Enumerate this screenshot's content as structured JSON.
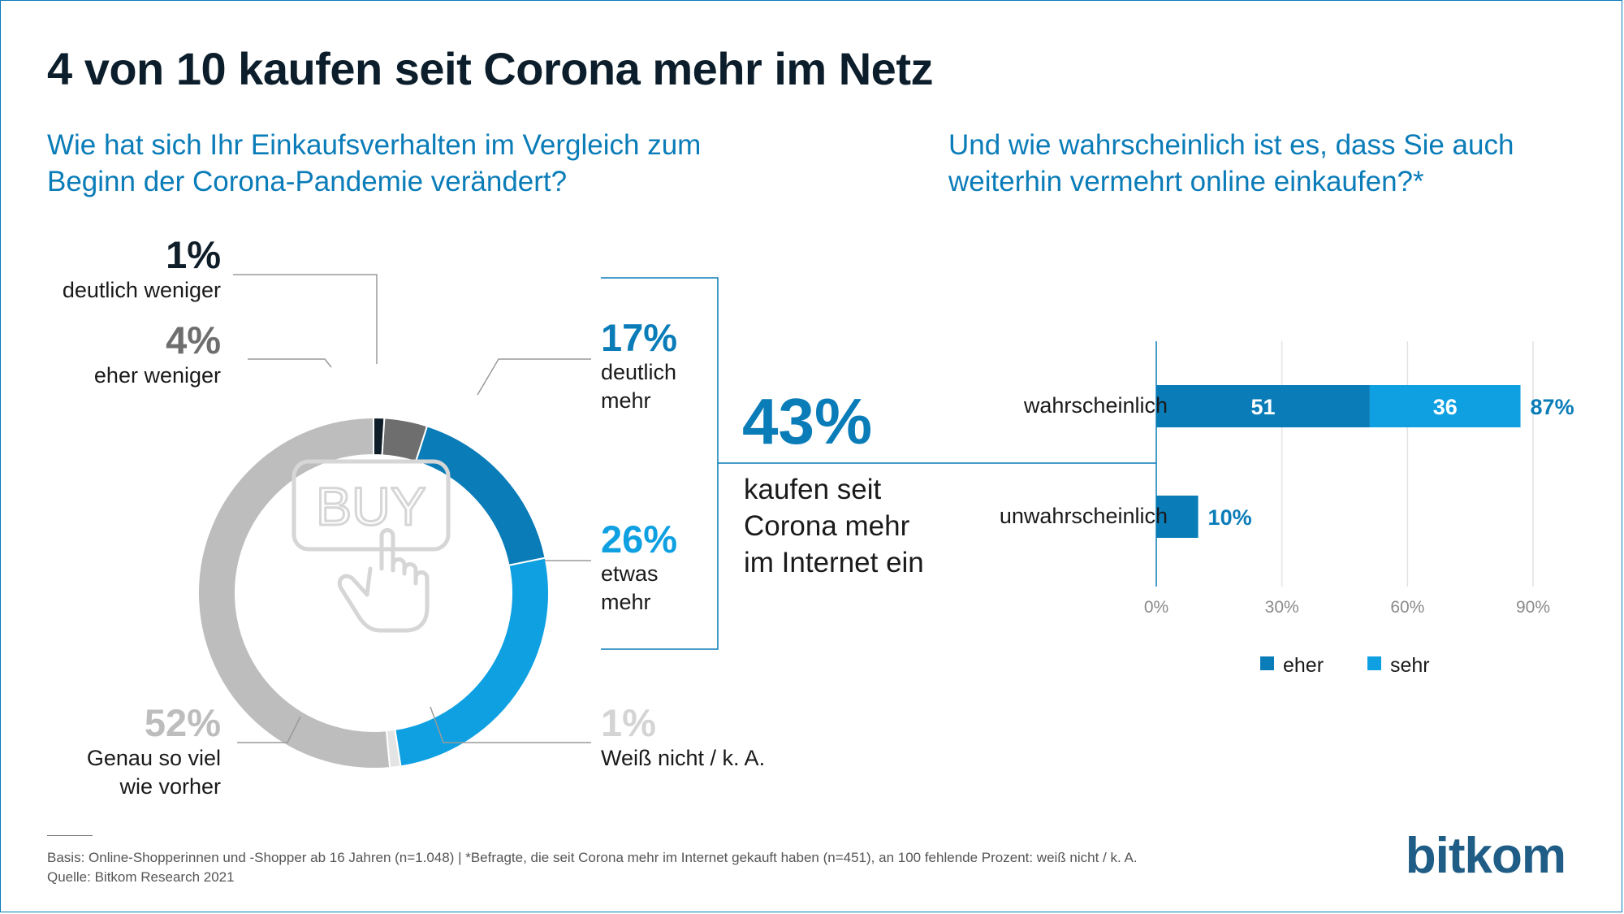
{
  "title": "4 von 10 kaufen seit Corona mehr im Netz",
  "question_left": "Wie hat sich Ihr Einkaufsverhalten im Vergleich zum Beginn der Corona-Pandemie verändert?",
  "question_right": "Und wie wahrscheinlich ist es, dass Sie auch weiterhin vermehrt online einkaufen?*",
  "icon_text": "BUY",
  "highlight": {
    "value": "43%",
    "line1": "kaufen seit",
    "line2": "Corona mehr",
    "line3": "im Internet ein"
  },
  "colors": {
    "dark": "#0f1d28",
    "darkgray": "#6e6e6e",
    "blue": "#0a7cb8",
    "lightblue": "#0fa0e2",
    "lightgray": "#e4e4e4",
    "gray": "#bdbdbd"
  },
  "donut_labels": [
    {
      "pct": "1%",
      "line1": "deutlich weniger",
      "line2": ""
    },
    {
      "pct": "4%",
      "line1": "eher weniger",
      "line2": ""
    },
    {
      "pct": "17%",
      "line1": "deutlich",
      "line2": "mehr"
    },
    {
      "pct": "26%",
      "line1": "etwas",
      "line2": "mehr"
    },
    {
      "pct": "1%",
      "line1": "Weiß nicht / k. A.",
      "line2": ""
    },
    {
      "pct": "52%",
      "line1": "Genau so viel",
      "line2": "wie vorher"
    }
  ],
  "bar_labels": {
    "seg_eher": "51",
    "seg_sehr": "36",
    "total_wahrscheinlich": "87%",
    "total_unwahrscheinlich": "10%"
  },
  "chart_data": [
    {
      "type": "pie",
      "variant": "donut",
      "title": "Wie hat sich Ihr Einkaufsverhalten im Vergleich zum Beginn der Corona-Pandemie verändert?",
      "categories": [
        "deutlich weniger",
        "eher weniger",
        "deutlich mehr",
        "etwas mehr",
        "Weiß nicht / k. A.",
        "Genau so viel wie vorher"
      ],
      "values": [
        1,
        4,
        17,
        26,
        1,
        52
      ],
      "colors": [
        "#0f1d28",
        "#6e6e6e",
        "#0a7cb8",
        "#0fa0e2",
        "#e4e4e4",
        "#bdbdbd"
      ]
    },
    {
      "type": "bar",
      "orientation": "horizontal",
      "stacked": true,
      "title": "Und wie wahrscheinlich ist es, dass Sie auch weiterhin vermehrt online einkaufen?*",
      "categories": [
        "wahrscheinlich",
        "unwahrscheinlich"
      ],
      "series": [
        {
          "name": "eher",
          "values": [
            51,
            10
          ],
          "color": "#0a7cb8"
        },
        {
          "name": "sehr",
          "values": [
            36,
            0
          ],
          "color": "#0fa0e2"
        }
      ],
      "totals": [
        87,
        10
      ],
      "xlim": [
        0,
        90
      ],
      "xticks": [
        "0%",
        "30%",
        "60%",
        "90%"
      ],
      "legend": [
        "eher",
        "sehr"
      ],
      "legend_position": "bottom"
    }
  ],
  "footnote": {
    "line1": "Basis: Online-Shopperinnen und -Shopper ab 16 Jahren (n=1.048) | *Befragte, die seit Corona mehr im Internet gekauft haben (n=451), an 100 fehlende Prozent: weiß nicht / k. A.",
    "line2": "Quelle: Bitkom Research 2021"
  },
  "logo": "bitkom"
}
